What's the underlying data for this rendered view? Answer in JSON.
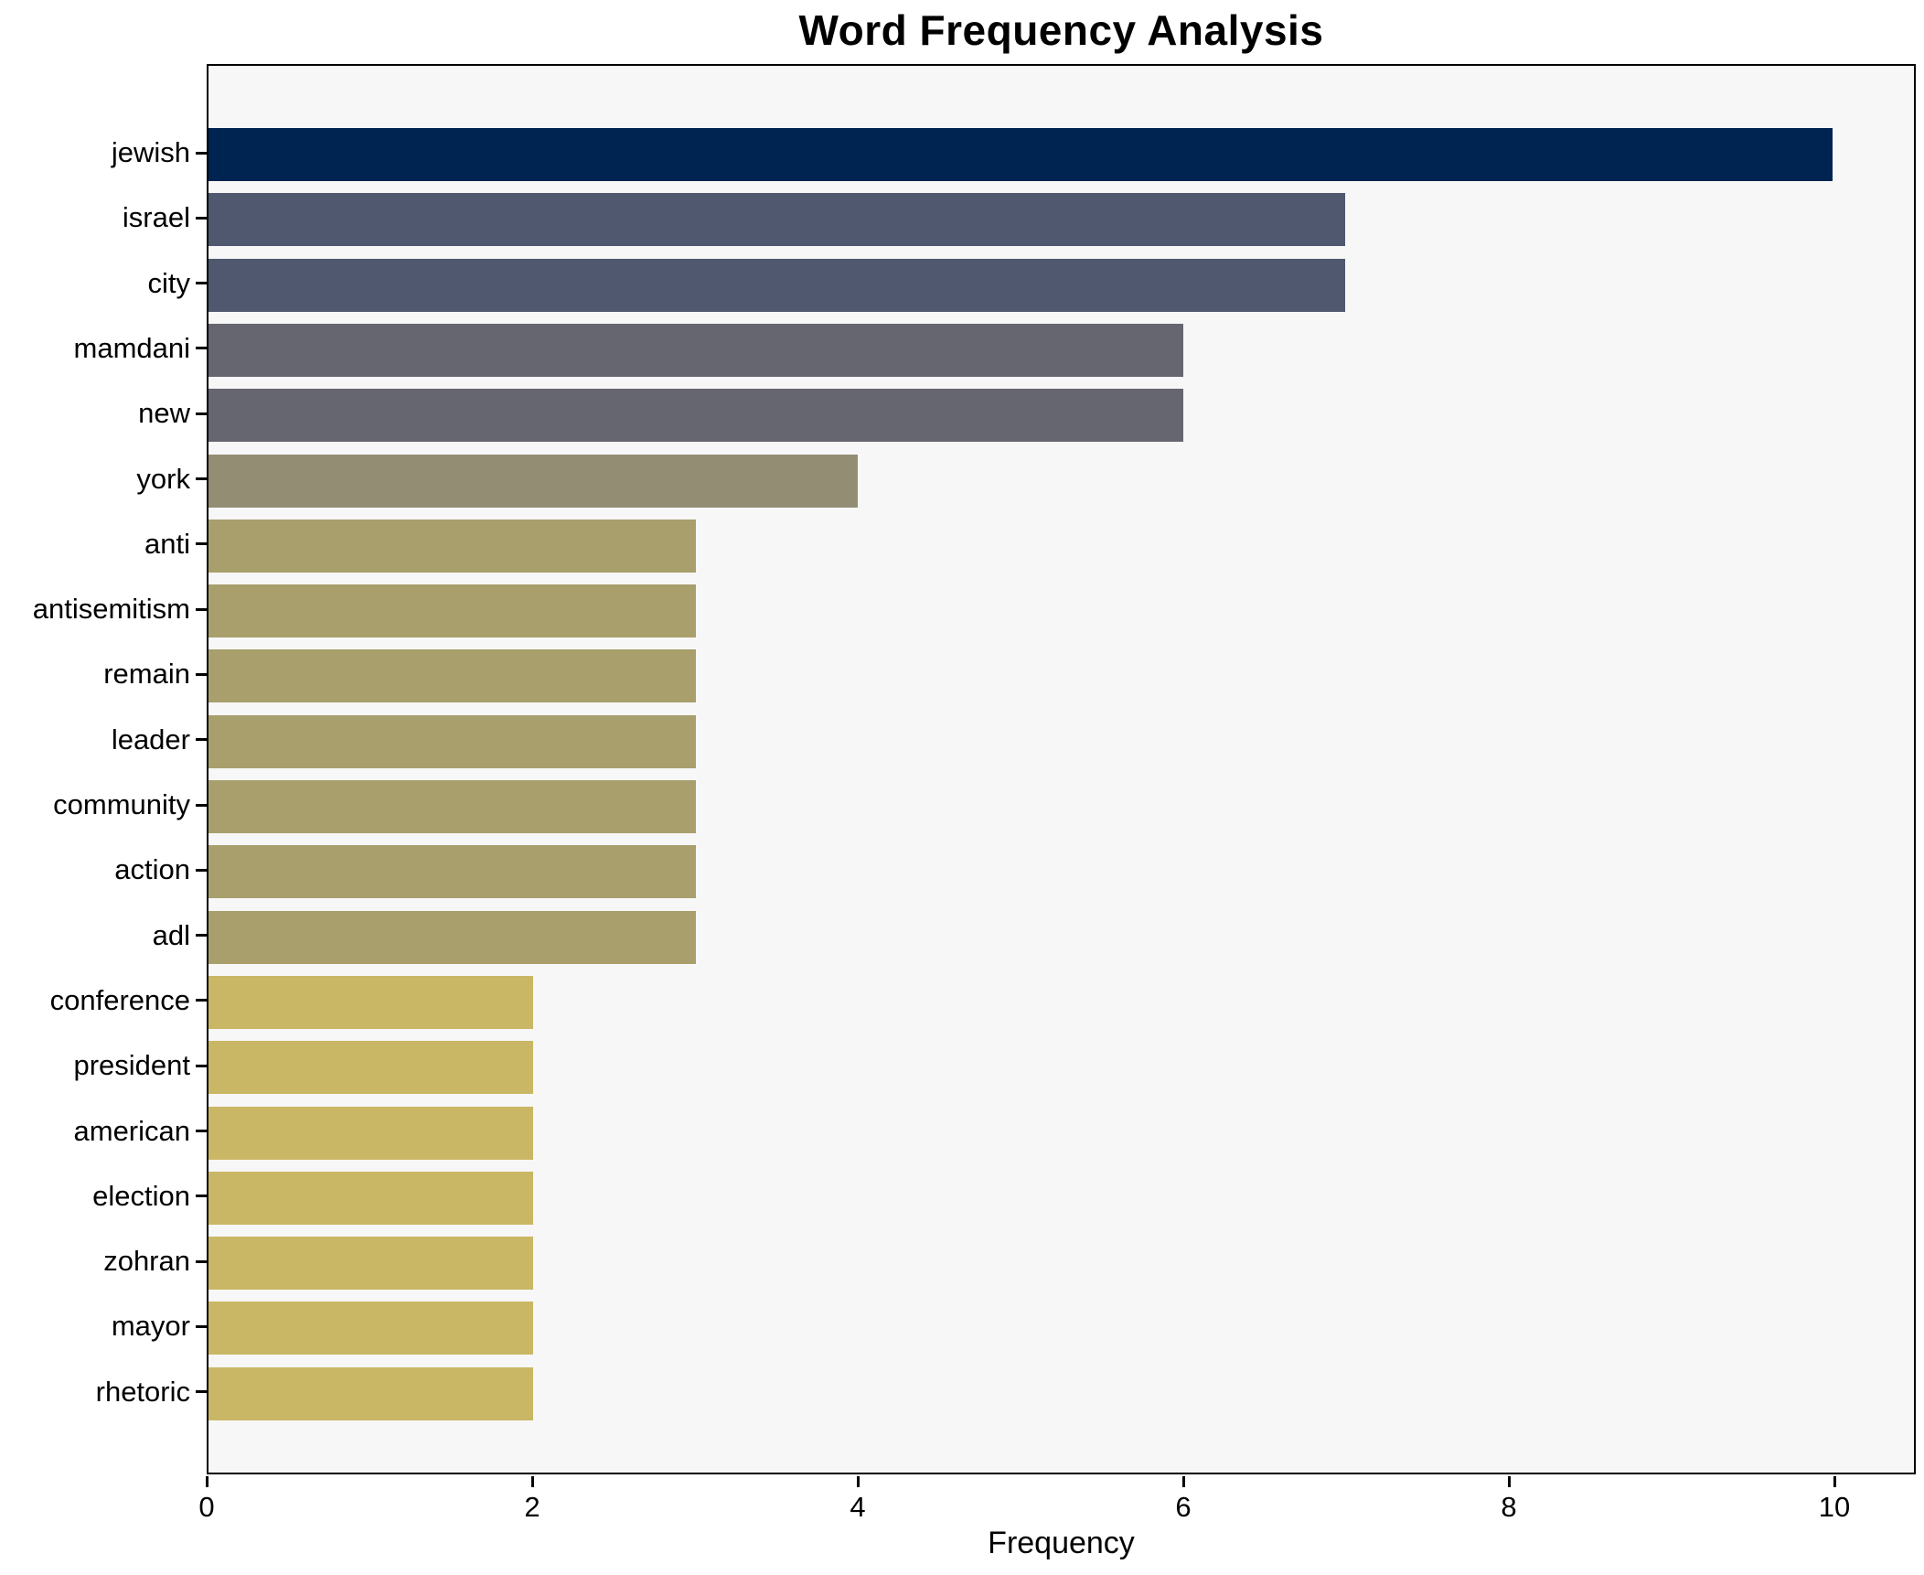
{
  "chart_data": {
    "type": "bar",
    "orientation": "horizontal",
    "title": "Word Frequency Analysis",
    "xlabel": "Frequency",
    "ylabel": "",
    "categories": [
      "jewish",
      "israel",
      "city",
      "mamdani",
      "new",
      "york",
      "anti",
      "antisemitism",
      "remain",
      "leader",
      "community",
      "action",
      "adl",
      "conference",
      "president",
      "american",
      "election",
      "zohran",
      "mayor",
      "rhetoric"
    ],
    "values": [
      10,
      7,
      7,
      6,
      6,
      4,
      3,
      3,
      3,
      3,
      3,
      3,
      3,
      2,
      2,
      2,
      2,
      2,
      2,
      2
    ],
    "bar_colors": [
      "#002452",
      "#4f586f",
      "#4f586f",
      "#65666f",
      "#65666f",
      "#938d74",
      "#a89f6c",
      "#a89f6c",
      "#a89f6c",
      "#a89f6c",
      "#a89f6c",
      "#a89f6c",
      "#a89f6c",
      "#c9b765",
      "#c9b765",
      "#c9b765",
      "#c9b765",
      "#c9b765",
      "#c9b765",
      "#c9b765"
    ],
    "xlim": [
      0,
      10.5
    ],
    "xticks": [
      0,
      2,
      4,
      6,
      8,
      10
    ],
    "grid": false,
    "legend": null,
    "plot_bg": "#f7f7f8",
    "fig_bg": "#ffffff",
    "spine_color": "#000000"
  }
}
